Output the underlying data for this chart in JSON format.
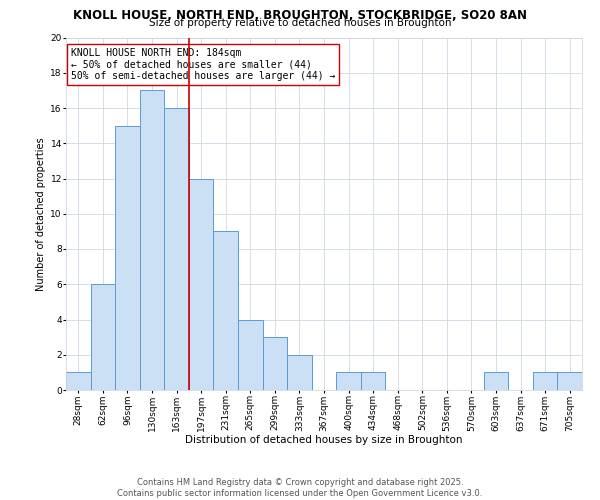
{
  "title1": "KNOLL HOUSE, NORTH END, BROUGHTON, STOCKBRIDGE, SO20 8AN",
  "title2": "Size of property relative to detached houses in Broughton",
  "xlabel": "Distribution of detached houses by size in Broughton",
  "ylabel": "Number of detached properties",
  "bin_labels": [
    "28sqm",
    "62sqm",
    "96sqm",
    "130sqm",
    "163sqm",
    "197sqm",
    "231sqm",
    "265sqm",
    "299sqm",
    "333sqm",
    "367sqm",
    "400sqm",
    "434sqm",
    "468sqm",
    "502sqm",
    "536sqm",
    "570sqm",
    "603sqm",
    "637sqm",
    "671sqm",
    "705sqm"
  ],
  "counts": [
    1,
    6,
    15,
    17,
    16,
    12,
    9,
    4,
    3,
    2,
    0,
    1,
    1,
    0,
    0,
    0,
    0,
    1,
    0,
    1,
    1
  ],
  "bar_color": "#cce0f5",
  "bar_edge_color": "#5b9bd5",
  "vline_x": 4.5,
  "vline_color": "#cc0000",
  "ylim": [
    0,
    20
  ],
  "yticks": [
    0,
    2,
    4,
    6,
    8,
    10,
    12,
    14,
    16,
    18,
    20
  ],
  "annotation_line1": "KNOLL HOUSE NORTH END: 184sqm",
  "annotation_line2": "← 50% of detached houses are smaller (44)",
  "annotation_line3": "50% of semi-detached houses are larger (44) →",
  "footer1": "Contains HM Land Registry data © Crown copyright and database right 2025.",
  "footer2": "Contains public sector information licensed under the Open Government Licence v3.0.",
  "bg_color": "#ffffff",
  "grid_color": "#d0d8e8",
  "title1_fontsize": 8.5,
  "title2_fontsize": 7.5,
  "annotation_fontsize": 7,
  "footer_fontsize": 6,
  "xlabel_fontsize": 7.5,
  "ylabel_fontsize": 7,
  "tick_fontsize": 6.5
}
